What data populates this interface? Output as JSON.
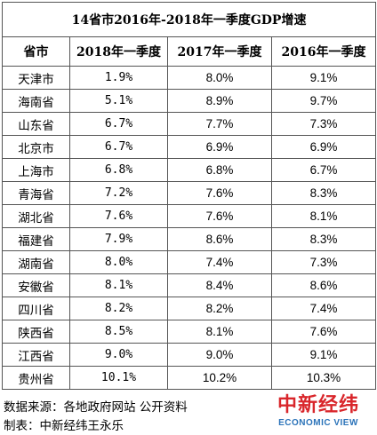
{
  "title": "14省市2016年-2018年一季度GDP增速",
  "headers": [
    "省市",
    "2018年一季度",
    "2017年一季度",
    "2016年一季度"
  ],
  "rows": [
    [
      "天津市",
      "1.9%",
      "8.0%",
      "9.1%"
    ],
    [
      "海南省",
      "5.1%",
      "8.9%",
      "9.7%"
    ],
    [
      "山东省",
      "6.7%",
      "7.7%",
      "7.3%"
    ],
    [
      "北京市",
      "6.7%",
      "6.9%",
      "6.9%"
    ],
    [
      "上海市",
      "6.8%",
      "6.8%",
      "6.7%"
    ],
    [
      "青海省",
      "7.2%",
      "7.6%",
      "8.3%"
    ],
    [
      "湖北省",
      "7.6%",
      "7.6%",
      "8.1%"
    ],
    [
      "福建省",
      "7.9%",
      "8.6%",
      "8.3%"
    ],
    [
      "湖南省",
      "8.0%",
      "7.4%",
      "7.3%"
    ],
    [
      "安徽省",
      "8.1%",
      "8.4%",
      "8.6%"
    ],
    [
      "四川省",
      "8.2%",
      "8.2%",
      "7.4%"
    ],
    [
      "陕西省",
      "8.5%",
      "8.1%",
      "7.6%"
    ],
    [
      "江西省",
      "9.0%",
      "9.0%",
      "9.1%"
    ],
    [
      "贵州省",
      "10.1%",
      "10.2%",
      "10.3%"
    ]
  ],
  "footer": {
    "source": "数据来源：各地政府网站 公开资料",
    "maker": "制表：中新经纬王永乐"
  },
  "logo": {
    "chinese": "中新经纬",
    "english": "ECONOMIC VIEW",
    "colors": {
      "chinese": "#d9262b",
      "english": "#2b73b9"
    }
  }
}
